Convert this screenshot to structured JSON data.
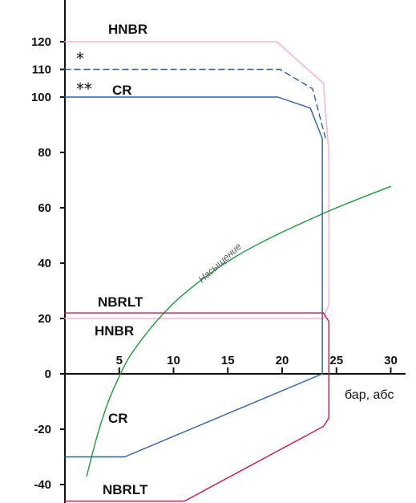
{
  "chart_data": {
    "type": "line",
    "xlabel": "бар, абс",
    "xlim": [
      0,
      30
    ],
    "ylim": [
      -45,
      130
    ],
    "x_ticks": [
      5,
      10,
      15,
      20,
      25,
      30
    ],
    "y_ticks": [
      120,
      110,
      100,
      80,
      60,
      40,
      20,
      0,
      -20,
      -40
    ],
    "y_tick_labels": [
      "120",
      "110",
      "100",
      "80",
      "60",
      "40",
      "20",
      "0",
      "-20",
      "-40"
    ],
    "x_tick_labels": [
      "5",
      "10",
      "15",
      "20",
      "25",
      "30"
    ],
    "colors": {
      "hnbr": "#f2b8c8",
      "cr": "#2e5ea8",
      "nbrlt": "#cc1846",
      "saturation": "#1a9a3c",
      "axis": "#111111"
    },
    "series": [
      {
        "key": "hnbr",
        "label_top": "HNBR",
        "label_bottom": "HNBR",
        "x": [
          0,
          19.5,
          23.8,
          24.3,
          24.3,
          23.8,
          0
        ],
        "y": [
          120,
          120,
          105,
          80,
          25,
          20,
          20
        ]
      },
      {
        "key": "cr",
        "label_top": "CR",
        "label_bottom": "CR",
        "x": [
          0,
          19.6,
          22.6,
          23.7,
          23.7,
          23.7,
          5.5,
          0
        ],
        "y": [
          100,
          100,
          96,
          85,
          0,
          0,
          -30,
          -30
        ]
      },
      {
        "key": "cr_dashed",
        "x": [
          0,
          19.8,
          22.8,
          24.0
        ],
        "y": [
          110,
          110,
          103,
          85
        ],
        "dashed": true
      },
      {
        "key": "nbrlt",
        "label_top": "NBRLT",
        "label_bottom": "NBRLT",
        "x": [
          0,
          23.8,
          24.3,
          24.3,
          23.8,
          11.0,
          0
        ],
        "y": [
          22,
          22,
          19,
          -16,
          -19,
          -46,
          -46
        ]
      },
      {
        "key": "saturation",
        "name": "Насыщение",
        "x": [
          2,
          3,
          4,
          5,
          6,
          8,
          10,
          12,
          14,
          16,
          18,
          20,
          22,
          24,
          26,
          28,
          30
        ],
        "y": [
          -37,
          -22,
          -10,
          -1,
          6.5,
          17,
          25.5,
          32.2,
          38,
          43,
          47.3,
          51.2,
          54.8,
          58.3,
          61.6,
          64.7,
          67.7
        ]
      }
    ],
    "annotations": [
      {
        "text": "*",
        "near": "110"
      },
      {
        "text": "**",
        "near": "100"
      }
    ]
  }
}
